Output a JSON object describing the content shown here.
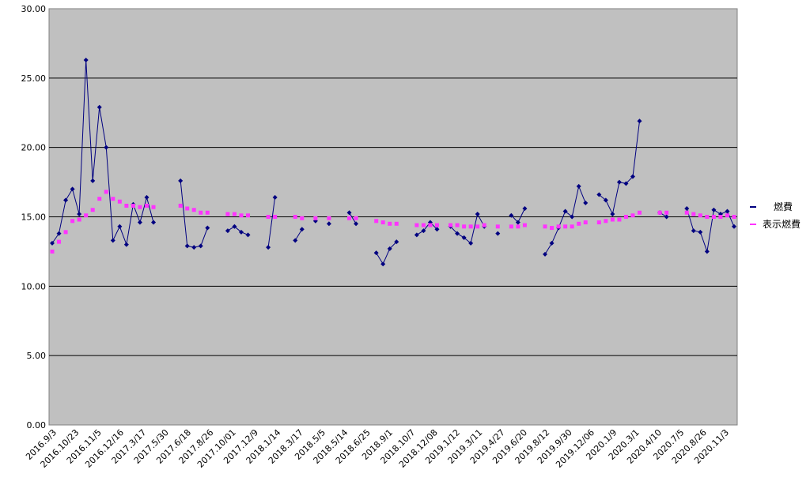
{
  "chart_data": {
    "type": "line",
    "ylim": [
      0,
      30
    ],
    "y_ticks": [
      "0.00",
      "5.00",
      "10.00",
      "15.00",
      "20.00",
      "25.00",
      "30.00"
    ],
    "x_tick_labels": [
      "2016.9/3",
      "2016.10/23",
      "2016.11/5",
      "2016.12/16",
      "2017.3/17",
      "2017.5/30",
      "2017.6/18",
      "2017.8/26",
      "2017.10/01",
      "2017.12/9",
      "2018.1/14",
      "2018.3/17",
      "2018.5/5",
      "2018.5/14",
      "2018.6/25",
      "2018.9/1",
      "2018.10/7",
      "2018.12/08",
      "2019.1/12",
      "2019.3/11",
      "2019.4/27",
      "2019.6/20",
      "2019.8/12",
      "2019.9/30",
      "2019.12/06",
      "2020.1/9",
      "2020.3/1",
      "2020.4/10",
      "2020.7/5",
      "2020.8/26",
      "2020.11/3"
    ],
    "grid": true,
    "background": "#c0c0c0",
    "legend_placement": "right",
    "series": [
      {
        "name": "燃費",
        "color": "#000080",
        "marker": "diamond",
        "values": [
          13.1,
          13.8,
          16.2,
          17.0,
          15.2,
          26.3,
          17.6,
          22.9,
          20.0,
          13.3,
          14.3,
          13.0,
          15.9,
          14.6,
          16.4,
          14.6,
          null,
          null,
          null,
          17.6,
          12.9,
          12.8,
          12.9,
          14.2,
          null,
          null,
          14.0,
          14.3,
          13.9,
          13.7,
          null,
          null,
          12.8,
          16.4,
          null,
          null,
          13.3,
          14.1,
          null,
          14.7,
          null,
          14.5,
          null,
          null,
          15.3,
          14.5,
          null,
          null,
          12.4,
          11.6,
          12.7,
          13.2,
          null,
          null,
          13.7,
          14.0,
          14.6,
          14.1,
          null,
          14.3,
          13.8,
          13.5,
          13.1,
          15.2,
          14.3,
          null,
          13.8,
          null,
          15.1,
          14.6,
          15.6,
          null,
          null,
          12.3,
          13.1,
          14.2,
          15.4,
          15.0,
          17.2,
          16.0,
          null,
          16.6,
          16.2,
          15.2,
          17.5,
          17.4,
          17.9,
          21.9,
          null,
          null,
          15.3,
          15.0,
          null,
          null,
          15.6,
          14.0,
          13.9,
          12.5,
          15.5,
          15.2,
          15.4,
          14.3
        ]
      },
      {
        "name": "表示燃費",
        "color": "#ff33ff",
        "marker": "square",
        "values": [
          12.5,
          13.2,
          13.9,
          14.7,
          14.8,
          15.1,
          15.5,
          16.3,
          16.8,
          16.3,
          16.1,
          15.8,
          15.8,
          15.7,
          15.8,
          15.7,
          null,
          null,
          null,
          15.8,
          15.6,
          15.5,
          15.3,
          15.3,
          null,
          null,
          15.2,
          15.2,
          15.1,
          15.1,
          null,
          null,
          15.0,
          15.0,
          null,
          null,
          15.0,
          14.9,
          null,
          14.9,
          null,
          14.9,
          null,
          null,
          14.9,
          14.9,
          null,
          null,
          14.7,
          14.6,
          14.5,
          14.5,
          null,
          null,
          14.4,
          14.4,
          14.4,
          14.4,
          null,
          14.4,
          14.4,
          14.3,
          14.3,
          14.3,
          14.4,
          null,
          14.3,
          null,
          14.3,
          14.3,
          14.4,
          null,
          null,
          14.3,
          14.2,
          14.3,
          14.3,
          14.3,
          14.5,
          14.6,
          null,
          14.6,
          14.7,
          14.8,
          14.8,
          15.0,
          15.1,
          15.3,
          null,
          null,
          15.3,
          15.3,
          null,
          null,
          15.3,
          15.2,
          15.1,
          15.0,
          15.0,
          15.0,
          15.1,
          15.0
        ]
      }
    ]
  }
}
